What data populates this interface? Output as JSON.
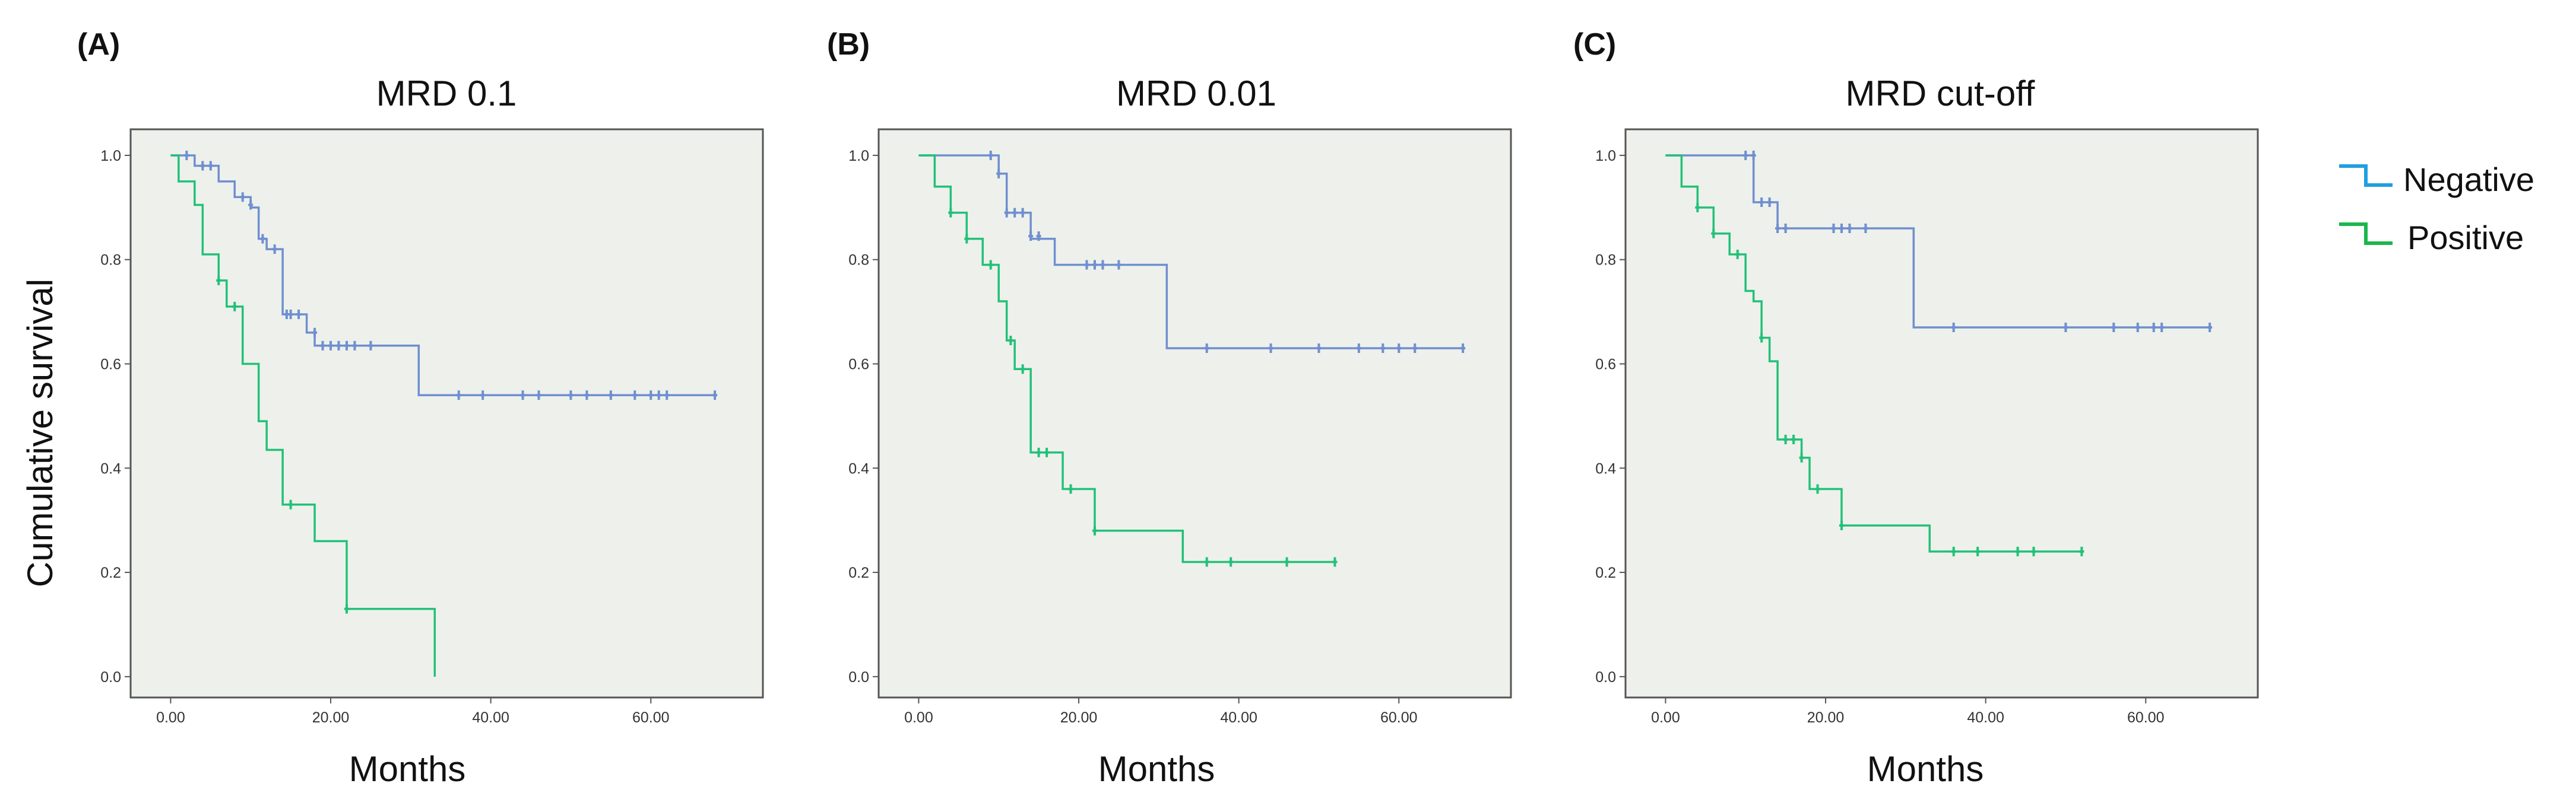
{
  "y_axis_label": "Cumulative survival",
  "legend": {
    "entries": [
      {
        "label": "Negative",
        "color": "#1f9fe0"
      },
      {
        "label": "Positive",
        "color": "#19b84a"
      }
    ]
  },
  "colors": {
    "negative_line": "#6f8fcf",
    "positive_line": "#22c178",
    "plot_background": "#eef0ec"
  },
  "chart_data": [
    {
      "type": "line",
      "panel": "(A)",
      "title": "MRD 0.1",
      "xlabel": "Months",
      "ylabel": "Cumulative survival",
      "xlim": [
        -5,
        74
      ],
      "ylim": [
        -0.04,
        1.05
      ],
      "xticks": [
        0,
        20,
        40,
        60
      ],
      "xtick_labels": [
        "0.00",
        "20.00",
        "40.00",
        "60.00"
      ],
      "yticks": [
        0,
        0.2,
        0.4,
        0.6,
        0.8,
        1.0
      ],
      "ytick_labels": [
        "0.0",
        "0.2",
        "0.4",
        "0.6",
        "0.8",
        "1.0"
      ],
      "series": [
        {
          "name": "Negative",
          "steps": [
            [
              0,
              1.0
            ],
            [
              3,
              0.98
            ],
            [
              6,
              0.95
            ],
            [
              8,
              0.92
            ],
            [
              10,
              0.9
            ],
            [
              11,
              0.84
            ],
            [
              12,
              0.82
            ],
            [
              14,
              0.695
            ],
            [
              17,
              0.66
            ],
            [
              18,
              0.635
            ],
            [
              31,
              0.54
            ],
            [
              68,
              0.54
            ]
          ],
          "censored": [
            [
              2,
              1.0
            ],
            [
              4,
              0.98
            ],
            [
              5,
              0.98
            ],
            [
              9,
              0.92
            ],
            [
              10,
              0.905
            ],
            [
              11.5,
              0.84
            ],
            [
              13,
              0.82
            ],
            [
              14.5,
              0.695
            ],
            [
              15,
              0.695
            ],
            [
              16,
              0.695
            ],
            [
              18,
              0.66
            ],
            [
              19,
              0.635
            ],
            [
              20,
              0.635
            ],
            [
              21,
              0.635
            ],
            [
              22,
              0.635
            ],
            [
              23,
              0.635
            ],
            [
              25,
              0.635
            ],
            [
              36,
              0.54
            ],
            [
              39,
              0.54
            ],
            [
              44,
              0.54
            ],
            [
              46,
              0.54
            ],
            [
              50,
              0.54
            ],
            [
              52,
              0.54
            ],
            [
              55,
              0.54
            ],
            [
              58,
              0.54
            ],
            [
              60,
              0.54
            ],
            [
              61,
              0.54
            ],
            [
              62,
              0.54
            ],
            [
              68,
              0.54
            ]
          ]
        },
        {
          "name": "Positive",
          "steps": [
            [
              0,
              1.0
            ],
            [
              1,
              0.95
            ],
            [
              3,
              0.905
            ],
            [
              4,
              0.81
            ],
            [
              6,
              0.76
            ],
            [
              7,
              0.71
            ],
            [
              9,
              0.6
            ],
            [
              11,
              0.49
            ],
            [
              12,
              0.435
            ],
            [
              14,
              0.33
            ],
            [
              18,
              0.26
            ],
            [
              22,
              0.13
            ],
            [
              33,
              0.0
            ]
          ],
          "censored": [
            [
              6,
              0.76
            ],
            [
              8,
              0.71
            ],
            [
              15,
              0.33
            ],
            [
              22,
              0.13
            ]
          ]
        }
      ]
    },
    {
      "type": "line",
      "panel": "(B)",
      "title": "MRD 0.01",
      "xlabel": "Months",
      "ylabel": "Cumulative survival",
      "xlim": [
        -5,
        74
      ],
      "ylim": [
        -0.04,
        1.05
      ],
      "xticks": [
        0,
        20,
        40,
        60
      ],
      "xtick_labels": [
        "0.00",
        "20.00",
        "40.00",
        "60.00"
      ],
      "yticks": [
        0,
        0.2,
        0.4,
        0.6,
        0.8,
        1.0
      ],
      "ytick_labels": [
        "0.0",
        "0.2",
        "0.4",
        "0.6",
        "0.8",
        "1.0"
      ],
      "series": [
        {
          "name": "Negative",
          "steps": [
            [
              0,
              1.0
            ],
            [
              10,
              0.965
            ],
            [
              11,
              0.89
            ],
            [
              14,
              0.84
            ],
            [
              17,
              0.79
            ],
            [
              31,
              0.63
            ],
            [
              68,
              0.63
            ]
          ],
          "censored": [
            [
              9,
              1.0
            ],
            [
              10,
              0.965
            ],
            [
              11,
              0.89
            ],
            [
              12,
              0.89
            ],
            [
              13,
              0.89
            ],
            [
              14,
              0.845
            ],
            [
              15,
              0.845
            ],
            [
              21,
              0.79
            ],
            [
              22,
              0.79
            ],
            [
              23,
              0.79
            ],
            [
              25,
              0.79
            ],
            [
              36,
              0.63
            ],
            [
              44,
              0.63
            ],
            [
              50,
              0.63
            ],
            [
              55,
              0.63
            ],
            [
              58,
              0.63
            ],
            [
              60,
              0.63
            ],
            [
              62,
              0.63
            ],
            [
              68,
              0.63
            ]
          ]
        },
        {
          "name": "Positive",
          "steps": [
            [
              0,
              1.0
            ],
            [
              2,
              0.94
            ],
            [
              4,
              0.89
            ],
            [
              6,
              0.84
            ],
            [
              8,
              0.79
            ],
            [
              10,
              0.72
            ],
            [
              11,
              0.645
            ],
            [
              12,
              0.59
            ],
            [
              14,
              0.43
            ],
            [
              17,
              0.43
            ],
            [
              18,
              0.36
            ],
            [
              22,
              0.28
            ],
            [
              33,
              0.22
            ],
            [
              52,
              0.22
            ]
          ],
          "censored": [
            [
              4,
              0.89
            ],
            [
              6,
              0.84
            ],
            [
              9,
              0.79
            ],
            [
              11.5,
              0.645
            ],
            [
              13,
              0.59
            ],
            [
              15,
              0.43
            ],
            [
              16,
              0.43
            ],
            [
              19,
              0.36
            ],
            [
              22,
              0.28
            ],
            [
              36,
              0.22
            ],
            [
              39,
              0.22
            ],
            [
              46,
              0.22
            ],
            [
              52,
              0.22
            ]
          ]
        }
      ]
    },
    {
      "type": "line",
      "panel": "(C)",
      "title": "MRD cut-off",
      "xlabel": "Months",
      "ylabel": "Cumulative survival",
      "xlim": [
        -5,
        74
      ],
      "ylim": [
        -0.04,
        1.05
      ],
      "xticks": [
        0,
        20,
        40,
        60
      ],
      "xtick_labels": [
        "0.00",
        "20.00",
        "40.00",
        "60.00"
      ],
      "yticks": [
        0,
        0.2,
        0.4,
        0.6,
        0.8,
        1.0
      ],
      "ytick_labels": [
        "0.0",
        "0.2",
        "0.4",
        "0.6",
        "0.8",
        "1.0"
      ],
      "series": [
        {
          "name": "Negative",
          "steps": [
            [
              0,
              1.0
            ],
            [
              11,
              0.91
            ],
            [
              14,
              0.86
            ],
            [
              31,
              0.67
            ],
            [
              68,
              0.67
            ]
          ],
          "censored": [
            [
              10,
              1.0
            ],
            [
              11,
              1.0
            ],
            [
              12,
              0.91
            ],
            [
              13,
              0.91
            ],
            [
              14,
              0.86
            ],
            [
              15,
              0.86
            ],
            [
              21,
              0.86
            ],
            [
              22,
              0.86
            ],
            [
              23,
              0.86
            ],
            [
              25,
              0.86
            ],
            [
              36,
              0.67
            ],
            [
              50,
              0.67
            ],
            [
              56,
              0.67
            ],
            [
              59,
              0.67
            ],
            [
              61,
              0.67
            ],
            [
              62,
              0.67
            ],
            [
              68,
              0.67
            ]
          ]
        },
        {
          "name": "Positive",
          "steps": [
            [
              0,
              1.0
            ],
            [
              2,
              0.94
            ],
            [
              4,
              0.9
            ],
            [
              6,
              0.85
            ],
            [
              8,
              0.81
            ],
            [
              10,
              0.74
            ],
            [
              11,
              0.72
            ],
            [
              12,
              0.65
            ],
            [
              13,
              0.605
            ],
            [
              14,
              0.455
            ],
            [
              16,
              0.455
            ],
            [
              17,
              0.42
            ],
            [
              18,
              0.36
            ],
            [
              22,
              0.29
            ],
            [
              33,
              0.24
            ],
            [
              52,
              0.24
            ]
          ],
          "censored": [
            [
              4,
              0.9
            ],
            [
              6,
              0.85
            ],
            [
              9,
              0.81
            ],
            [
              12,
              0.65
            ],
            [
              15,
              0.455
            ],
            [
              16,
              0.455
            ],
            [
              17,
              0.42
            ],
            [
              19,
              0.36
            ],
            [
              22,
              0.29
            ],
            [
              36,
              0.24
            ],
            [
              39,
              0.24
            ],
            [
              44,
              0.24
            ],
            [
              46,
              0.24
            ],
            [
              52,
              0.24
            ]
          ]
        }
      ]
    }
  ]
}
